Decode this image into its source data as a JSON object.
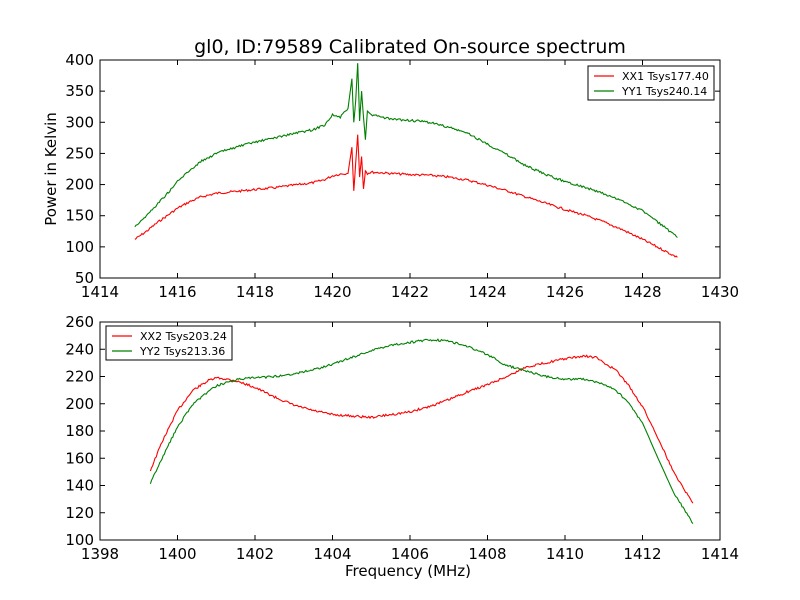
{
  "figure": {
    "title": "gl0, ID:79589 Calibrated On-source spectrum"
  },
  "chart_data": [
    {
      "type": "line",
      "title": "gl0, ID:79589 Calibrated On-source spectrum",
      "xlabel": "",
      "ylabel": "Power in Kelvin",
      "xlim": [
        1414,
        1430
      ],
      "ylim": [
        50,
        400
      ],
      "xticks": [
        1414,
        1416,
        1418,
        1420,
        1422,
        1424,
        1426,
        1428,
        1430
      ],
      "yticks": [
        50,
        100,
        150,
        200,
        250,
        300,
        350,
        400
      ],
      "grid": false,
      "legend_position": "top-right",
      "series": [
        {
          "name": "XX1 Tsys177.40",
          "color": "#ff0000",
          "x": [
            1414.9,
            1415.2,
            1415.5,
            1415.8,
            1416.0,
            1416.3,
            1416.6,
            1417.0,
            1417.5,
            1418.0,
            1418.5,
            1419.0,
            1419.5,
            1419.8,
            1420.0,
            1420.2,
            1420.4,
            1420.5,
            1420.55,
            1420.6,
            1420.65,
            1420.7,
            1420.75,
            1420.8,
            1420.85,
            1420.9,
            1421.0,
            1421.5,
            1422.0,
            1422.5,
            1423.0,
            1423.5,
            1424.0,
            1424.5,
            1425.0,
            1425.5,
            1426.0,
            1426.5,
            1427.0,
            1427.5,
            1428.0,
            1428.5,
            1428.9
          ],
          "values": [
            112,
            125,
            140,
            153,
            162,
            172,
            180,
            186,
            189,
            192,
            195,
            199,
            203,
            208,
            214,
            217,
            218,
            260,
            190,
            235,
            280,
            212,
            245,
            193,
            222,
            218,
            220,
            218,
            216,
            215,
            212,
            207,
            199,
            190,
            180,
            170,
            160,
            151,
            140,
            127,
            112,
            96,
            83
          ]
        },
        {
          "name": "YY1 Tsys240.14",
          "color": "#008000",
          "x": [
            1414.9,
            1415.2,
            1415.5,
            1415.8,
            1416.0,
            1416.3,
            1416.6,
            1417.0,
            1417.5,
            1418.0,
            1418.5,
            1419.0,
            1419.5,
            1419.8,
            1420.0,
            1420.2,
            1420.4,
            1420.5,
            1420.55,
            1420.6,
            1420.65,
            1420.7,
            1420.75,
            1420.8,
            1420.85,
            1420.9,
            1421.0,
            1421.5,
            1422.0,
            1422.5,
            1423.0,
            1423.5,
            1424.0,
            1424.5,
            1425.0,
            1425.5,
            1426.0,
            1426.5,
            1427.0,
            1427.5,
            1428.0,
            1428.5,
            1428.9
          ],
          "values": [
            133,
            150,
            170,
            190,
            205,
            222,
            237,
            250,
            260,
            268,
            275,
            282,
            288,
            296,
            312,
            308,
            322,
            370,
            300,
            335,
            395,
            302,
            350,
            308,
            272,
            318,
            312,
            305,
            303,
            300,
            292,
            282,
            265,
            248,
            230,
            216,
            205,
            196,
            185,
            173,
            158,
            135,
            115
          ]
        }
      ]
    },
    {
      "type": "line",
      "title": "",
      "xlabel": "Frequency (MHz)",
      "ylabel": "",
      "xlim": [
        1398,
        1414
      ],
      "ylim": [
        100,
        260
      ],
      "xticks": [
        1398,
        1400,
        1402,
        1404,
        1406,
        1408,
        1410,
        1412,
        1414
      ],
      "yticks": [
        100,
        120,
        140,
        160,
        180,
        200,
        220,
        240,
        260
      ],
      "grid": false,
      "legend_position": "top-left",
      "series": [
        {
          "name": "XX2 Tsys203.24",
          "color": "#ff0000",
          "x": [
            1399.3,
            1399.6,
            1400.0,
            1400.4,
            1400.8,
            1401.0,
            1401.3,
            1401.6,
            1402.0,
            1402.5,
            1403.0,
            1403.5,
            1404.0,
            1404.5,
            1405.0,
            1405.5,
            1406.0,
            1406.5,
            1407.0,
            1407.5,
            1408.0,
            1408.5,
            1409.0,
            1409.5,
            1410.0,
            1410.5,
            1410.8,
            1411.0,
            1411.3,
            1411.6,
            1412.0,
            1412.4,
            1412.8,
            1413.3
          ],
          "values": [
            151,
            172,
            195,
            210,
            217,
            219,
            218,
            216,
            212,
            205,
            199,
            195,
            192,
            191,
            190,
            192,
            194,
            198,
            203,
            209,
            214,
            220,
            227,
            230,
            233,
            235,
            234,
            230,
            225,
            215,
            198,
            175,
            150,
            127
          ]
        },
        {
          "name": "YY2 Tsys213.36",
          "color": "#008000",
          "x": [
            1399.3,
            1399.6,
            1400.0,
            1400.4,
            1400.8,
            1401.0,
            1401.3,
            1401.6,
            1402.0,
            1402.5,
            1403.0,
            1403.5,
            1404.0,
            1404.5,
            1405.0,
            1405.5,
            1406.0,
            1406.5,
            1407.0,
            1407.5,
            1408.0,
            1408.5,
            1409.0,
            1409.5,
            1410.0,
            1410.5,
            1410.8,
            1411.0,
            1411.3,
            1411.6,
            1412.0,
            1412.4,
            1412.8,
            1413.3
          ],
          "values": [
            142,
            160,
            183,
            200,
            209,
            213,
            216,
            218,
            219,
            220,
            222,
            225,
            229,
            234,
            239,
            243,
            245,
            247,
            246,
            242,
            236,
            228,
            224,
            220,
            218,
            218,
            216,
            214,
            210,
            202,
            186,
            160,
            135,
            112
          ]
        }
      ]
    }
  ]
}
